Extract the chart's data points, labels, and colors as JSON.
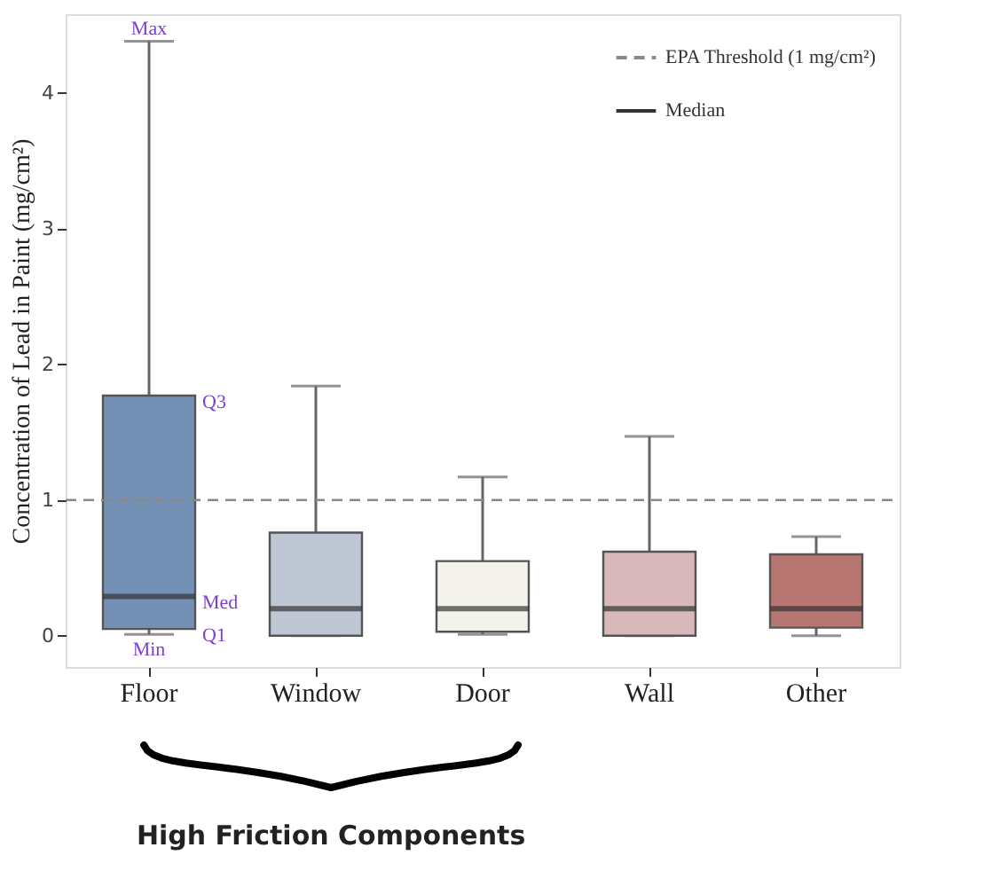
{
  "chart_data": {
    "type": "box",
    "ylabel": "Concentration of Lead in Paint (mg/cm²)",
    "categories": [
      "Floor",
      "Window",
      "Door",
      "Wall",
      "Other"
    ],
    "colors": [
      "#7590b5",
      "#bfc6d4",
      "#f3f3ec",
      "#d9b8bb",
      "#b87672"
    ],
    "boxes": [
      {
        "low": 0.01,
        "q1": 0.05,
        "median": 0.29,
        "q3": 1.77,
        "high": 4.38
      },
      {
        "low": 0.0,
        "q1": 0.0,
        "median": 0.2,
        "q3": 0.76,
        "high": 1.84
      },
      {
        "low": 0.01,
        "q1": 0.03,
        "median": 0.2,
        "q3": 0.55,
        "high": 1.17
      },
      {
        "low": 0.0,
        "q1": 0.0,
        "median": 0.2,
        "q3": 0.62,
        "high": 1.47
      },
      {
        "low": 0.0,
        "q1": 0.06,
        "median": 0.2,
        "q3": 0.6,
        "high": 0.73
      }
    ],
    "ylim": [
      -0.23,
      4.58
    ],
    "yticks": [
      0,
      1,
      2,
      3,
      4
    ],
    "grid": false,
    "legend": "top right",
    "ref_lines": [
      {
        "axis": "y",
        "value": 1,
        "label": "EPA Threshold (1 mg/cm²)",
        "color": "#888888",
        "line_style": "dashed"
      }
    ],
    "annotations": [
      {
        "text": "Max",
        "x": "Floor",
        "y": 4.38
      },
      {
        "text": "Q3",
        "x": "Floor",
        "y": 1.77
      },
      {
        "text": "Med",
        "x": "Floor",
        "y": 0.29
      },
      {
        "text": "Q1",
        "x": "Floor",
        "y": 0.05
      },
      {
        "text": "Min",
        "x": "Floor",
        "y": 0.01
      },
      "Median",
      "High Friction Components"
    ]
  }
}
